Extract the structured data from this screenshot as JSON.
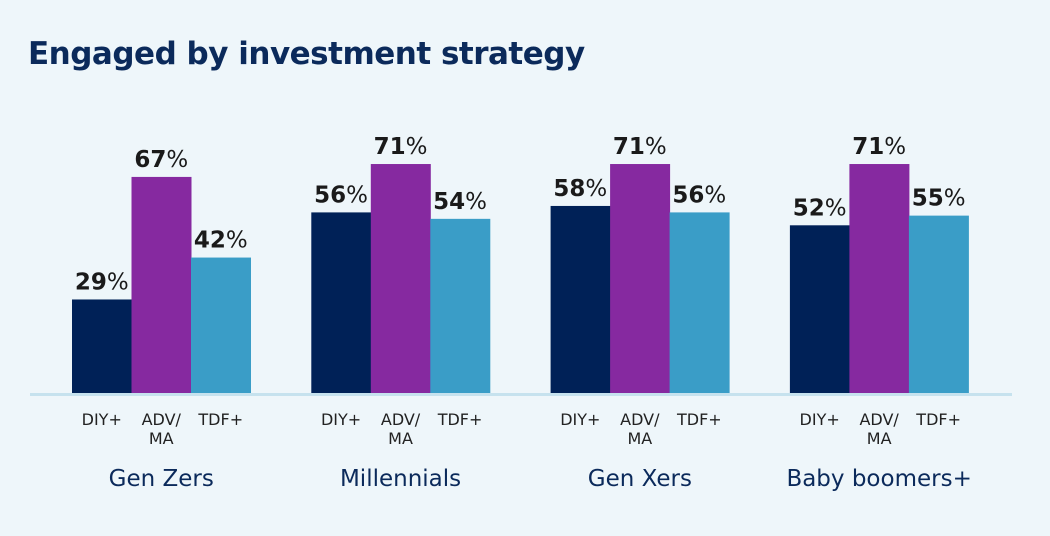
{
  "chart_data": {
    "type": "bar",
    "title": "Engaged by investment strategy",
    "categories": [
      "Gen Zers",
      "Millennials",
      "Gen Xers",
      "Baby boomers+"
    ],
    "bar_labels": [
      "DIY+",
      "ADV/\nMA",
      "TDF+"
    ],
    "series": [
      {
        "name": "DIY+",
        "color": "#002157",
        "values": [
          29,
          56,
          58,
          52
        ]
      },
      {
        "name": "ADV/MA",
        "color": "#8629a0",
        "values": [
          67,
          71,
          71,
          71
        ]
      },
      {
        "name": "TDF+",
        "color": "#3a9dc7",
        "values": [
          42,
          54,
          56,
          55
        ]
      }
    ],
    "unit": "%",
    "ylim": [
      0,
      100
    ],
    "grid": false,
    "legend": "none"
  }
}
